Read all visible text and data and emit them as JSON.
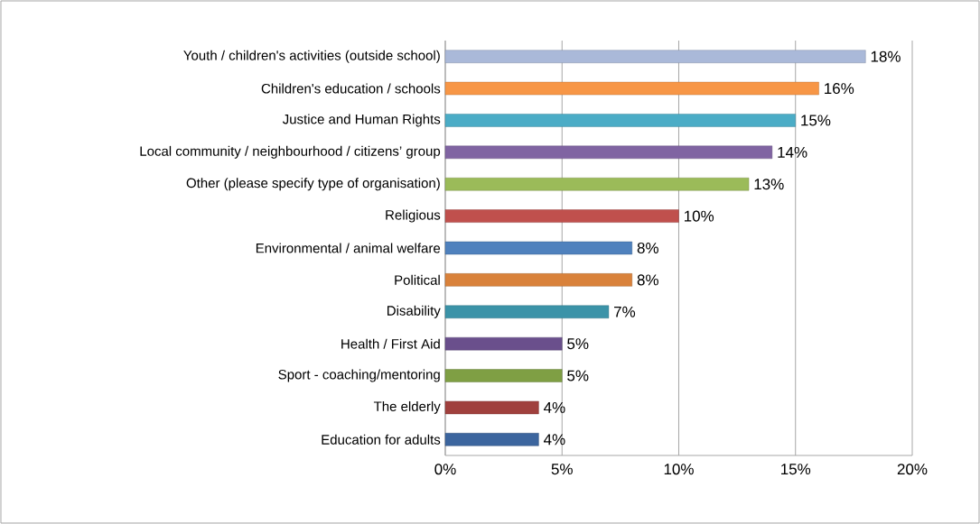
{
  "chart_data": {
    "type": "bar",
    "orientation": "horizontal",
    "categories": [
      "Youth / children's activities (outside school)",
      "Children's education / schools",
      "Justice and Human Rights",
      "Local community / neighbourhood / citizens’ group",
      "Other (please specify type of organisation)",
      "Religious",
      "Environmental / animal welfare",
      "Political",
      "Disability",
      "Health / First Aid",
      "Sport - coaching/mentoring",
      "The elderly",
      "Education for adults"
    ],
    "values": [
      18,
      16,
      15,
      14,
      13,
      10,
      8,
      8,
      7,
      5,
      5,
      4,
      4
    ],
    "value_labels": [
      "18%",
      "16%",
      "15%",
      "14%",
      "13%",
      "10%",
      "8%",
      "8%",
      "7%",
      "5%",
      "5%",
      "4%",
      "4%"
    ],
    "colors": [
      "#aab9d9",
      "#f79646",
      "#4bacc6",
      "#8064a2",
      "#9bbb59",
      "#c0504d",
      "#4f81bd",
      "#d9823b",
      "#3b93a8",
      "#6a4f8c",
      "#7f9f44",
      "#a0403d",
      "#3c659e"
    ],
    "xlim": [
      0,
      20
    ],
    "xticks": [
      {
        "value": 0,
        "label": "0%"
      },
      {
        "value": 5,
        "label": "5%"
      },
      {
        "value": 10,
        "label": "10%"
      },
      {
        "value": 15,
        "label": "15%"
      },
      {
        "value": 20,
        "label": "20%"
      }
    ],
    "grid": "x"
  }
}
